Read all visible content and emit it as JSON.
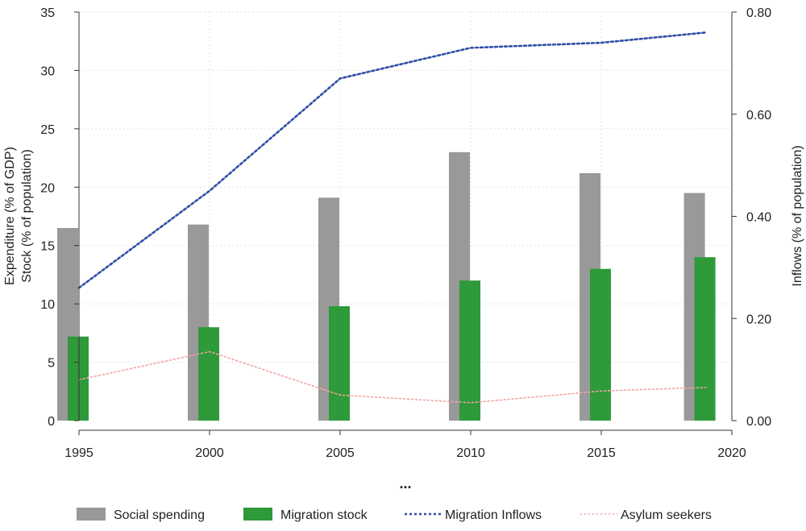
{
  "chart_data": {
    "type": "bar",
    "x": [
      1995,
      2000,
      2005,
      2010,
      2015,
      2019
    ],
    "xlim": [
      1995,
      2020
    ],
    "xticks": [
      "1995",
      "2000",
      "2005",
      "2010",
      "2015",
      "2020"
    ],
    "ylabel_left_line1": "Expenditure (% of GDP)",
    "ylabel_left_line2": "Stock (% of population)",
    "ylabel_right": "Inflows (% of population)",
    "ylim_left": [
      0,
      35
    ],
    "yticks_left": [
      "0",
      "5",
      "10",
      "15",
      "20",
      "25",
      "30",
      "35"
    ],
    "ylim_right": [
      0,
      0.8
    ],
    "yticks_right": [
      "0.00",
      "0.20",
      "0.40",
      "0.60",
      "0.80"
    ],
    "xnote": "...",
    "grid": true,
    "legend_position": "bottom",
    "series": [
      {
        "name": "Social spending",
        "kind": "bar",
        "axis": "left",
        "color": "#999999",
        "values": [
          16.5,
          16.8,
          19.1,
          23.0,
          21.2,
          19.5
        ]
      },
      {
        "name": "Migration stock",
        "kind": "bar",
        "axis": "left",
        "color": "#2e9a3a",
        "values": [
          7.2,
          8.0,
          9.8,
          12.0,
          13.0,
          14.0
        ]
      },
      {
        "name": "Migration Inflows",
        "kind": "line",
        "axis": "right",
        "color": "#2f4fa8",
        "style": "dotted",
        "values": [
          0.26,
          0.45,
          0.67,
          0.73,
          0.74,
          0.76
        ]
      },
      {
        "name": "Asylum seekers",
        "kind": "line",
        "axis": "right",
        "color": "#f4a3a3",
        "style": "dotted",
        "values": [
          0.08,
          0.135,
          0.05,
          0.035,
          0.058,
          0.065
        ]
      }
    ]
  }
}
